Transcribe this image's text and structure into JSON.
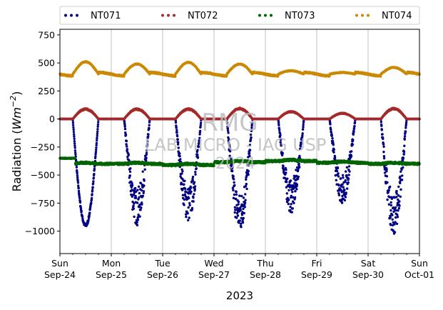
{
  "chart_data": {
    "type": "scatter",
    "title": "",
    "xlabel": "2023",
    "ylabel_main": "Radiation (",
    "ylabel_unit": "Wm",
    "ylabel_exp": "−2",
    "ylabel_close": ")",
    "ylim": [
      -1200,
      800
    ],
    "xlim": [
      "2023-09-24",
      "2023-10-01"
    ],
    "yticks": [
      750,
      500,
      250,
      0,
      -250,
      -500,
      -750,
      -1000
    ],
    "ytick_labels": [
      "750",
      "500",
      "250",
      "0",
      "−250",
      "−500",
      "−750",
      "−1000"
    ],
    "xticks": [
      {
        "day": "Sun",
        "date": "Sep-24"
      },
      {
        "day": "Mon",
        "date": "Sep-25"
      },
      {
        "day": "Tue",
        "date": "Sep-26"
      },
      {
        "day": "Wed",
        "date": "Sep-27"
      },
      {
        "day": "Thu",
        "date": "Sep-28"
      },
      {
        "day": "Fri",
        "date": "Sep-29"
      },
      {
        "day": "Sat",
        "date": "Sep-30"
      },
      {
        "day": "Sun",
        "date": "Oct-01"
      }
    ],
    "grid": "vertical",
    "legend_position": "top",
    "series": [
      {
        "name": "NT071",
        "color": "#000080",
        "baseline": 0,
        "daily_min": [
          -965,
          -950,
          -920,
          -1020,
          -840,
          -760,
          -1030
        ]
      },
      {
        "name": "NT072",
        "color": "#A52A2A",
        "baseline": 0,
        "daily_peak": [
          95,
          95,
          95,
          100,
          70,
          55,
          100
        ]
      },
      {
        "name": "NT073",
        "color": "#006400",
        "baseline": -350,
        "daily_level": [
          -400,
          -400,
          -410,
          -385,
          -375,
          -390,
          -400
        ]
      },
      {
        "name": "NT074",
        "color": "#CC8800",
        "baseline": 400,
        "daily_peak": [
          510,
          490,
          505,
          490,
          430,
          415,
          460
        ]
      }
    ],
    "watermark": {
      "line1": "RMG",
      "line2": "LAB MICRO - IAG USP",
      "line3": "2024"
    }
  }
}
